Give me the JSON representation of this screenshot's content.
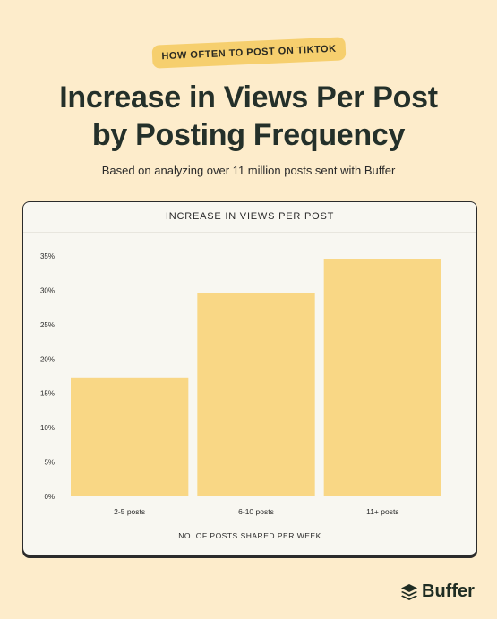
{
  "header": {
    "pill": "HOW OFTEN TO POST ON TIKTOK",
    "title_line1": "Increase in Views Per Post",
    "title_line2": "by Posting Frequency",
    "subtitle": "Based on analyzing over 11 million posts sent with Buffer"
  },
  "brand": {
    "name": "Buffer",
    "icon": "buffer-logo-icon"
  },
  "colors": {
    "background": "#fdeccb",
    "bar": "#f9d785",
    "accent": "#f6cf6e"
  },
  "chart_data": {
    "type": "bar",
    "title": "INCREASE IN VIEWS PER POST",
    "xlabel": "NO. OF POSTS SHARED PER WEEK",
    "ylabel": "",
    "categories": [
      "2-5 posts",
      "6-10 posts",
      "11+ posts"
    ],
    "values": [
      17.2,
      29.6,
      34.6
    ],
    "unit": "%",
    "ylim": [
      0,
      35
    ],
    "yticks": [
      "0%",
      "5%",
      "10%",
      "15%",
      "20%",
      "25%",
      "30%",
      "35%"
    ],
    "grid": false,
    "legend": "none"
  }
}
